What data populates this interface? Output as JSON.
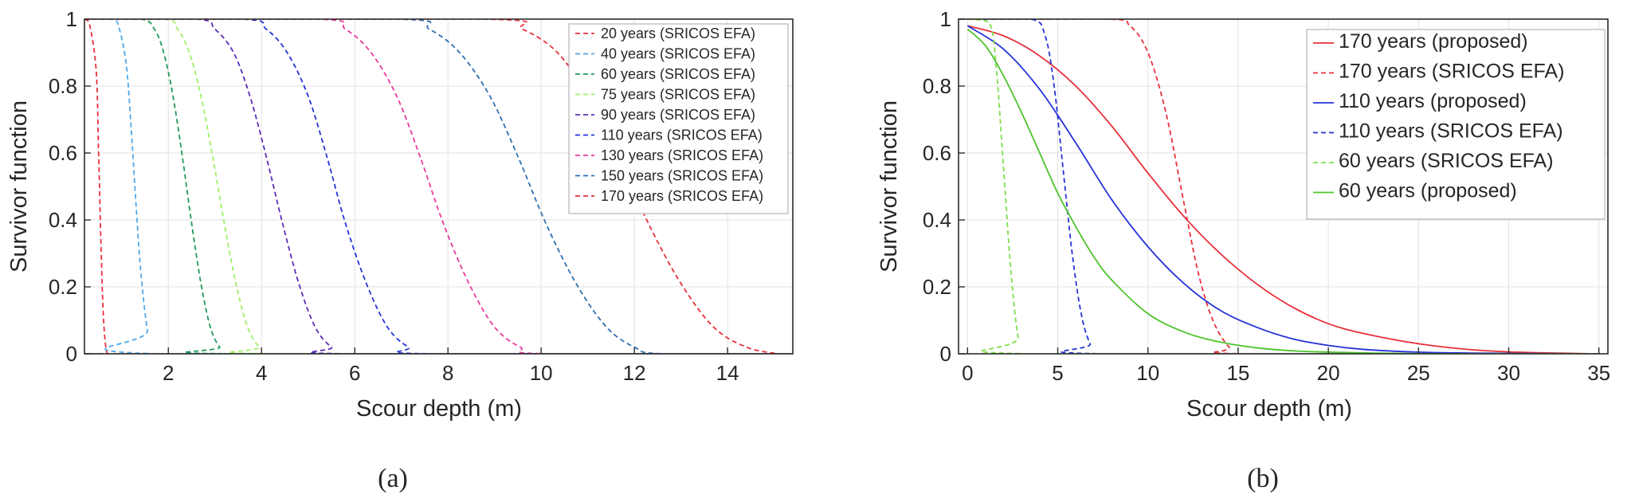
{
  "chart_data": [
    {
      "type": "line",
      "panel": "(a)",
      "xlabel": "Scour depth (m)",
      "ylabel": "Survivor function",
      "xlim": [
        0.2,
        15.4
      ],
      "ylim": [
        0,
        1
      ],
      "xticks": [
        2,
        4,
        6,
        8,
        10,
        12,
        14
      ],
      "yticks": [
        0,
        0.2,
        0.4,
        0.6,
        0.8,
        1
      ],
      "xtick_labels": [
        "2",
        "4",
        "6",
        "8",
        "10",
        "12",
        "14"
      ],
      "ytick_labels": [
        "0",
        "0.2",
        "0.4",
        "0.6",
        "0.8",
        "1"
      ],
      "grid": true,
      "legend_position": "top-right",
      "series": [
        {
          "name": "20 years (SRICOS EFA)",
          "color": "#e8303a",
          "dash": "dashed",
          "x": [
            0.2,
            0.3,
            0.45,
            0.5,
            0.55,
            0.6,
            0.65,
            0.7,
            0.8,
            15.4
          ],
          "y": [
            1,
            0.99,
            0.85,
            0.62,
            0.35,
            0.13,
            0.03,
            0.0,
            0.0,
            0.0
          ]
        },
        {
          "name": "40 years (SRICOS EFA)",
          "color": "#4fa8e8",
          "dash": "dashed",
          "x": [
            0.2,
            0.8,
            0.95,
            1.1,
            1.2,
            1.3,
            1.4,
            1.55,
            1.7,
            15.4
          ],
          "y": [
            1,
            1,
            0.97,
            0.86,
            0.68,
            0.46,
            0.26,
            0.07,
            0.0,
            0.0
          ]
        },
        {
          "name": "60 years (SRICOS EFA)",
          "color": "#1d9a5a",
          "dash": "dashed",
          "x": [
            0.2,
            1.4,
            1.7,
            1.9,
            2.1,
            2.3,
            2.5,
            2.7,
            2.9,
            3.1,
            3.3,
            15.4
          ],
          "y": [
            1,
            1,
            0.97,
            0.9,
            0.77,
            0.59,
            0.39,
            0.21,
            0.08,
            0.02,
            0.0,
            0.0
          ]
        },
        {
          "name": "75 years (SRICOS EFA)",
          "color": "#9fef6a",
          "dash": "dashed",
          "x": [
            0.2,
            1.9,
            2.2,
            2.45,
            2.7,
            2.95,
            3.2,
            3.45,
            3.7,
            3.95,
            4.2,
            15.4
          ],
          "y": [
            1,
            1,
            0.97,
            0.9,
            0.77,
            0.59,
            0.39,
            0.21,
            0.08,
            0.02,
            0.0,
            0.0
          ]
        },
        {
          "name": "90 years (SRICOS EFA)",
          "color": "#5c2bb8",
          "dash": "dashed",
          "x": [
            0.2,
            2.6,
            3.0,
            3.4,
            3.75,
            4.1,
            4.45,
            4.8,
            5.15,
            5.5,
            5.85,
            15.4
          ],
          "y": [
            1,
            1,
            0.97,
            0.9,
            0.77,
            0.59,
            0.39,
            0.21,
            0.08,
            0.02,
            0.0,
            0.0
          ]
        },
        {
          "name": "110 years (SRICOS EFA)",
          "color": "#2632d8",
          "dash": "dashed",
          "x": [
            0.2,
            3.6,
            4.1,
            4.55,
            5.0,
            5.4,
            5.8,
            6.25,
            6.7,
            7.15,
            7.6,
            15.4
          ],
          "y": [
            1,
            1,
            0.97,
            0.9,
            0.77,
            0.59,
            0.39,
            0.21,
            0.08,
            0.02,
            0.0,
            0.0
          ]
        },
        {
          "name": "130 years (SRICOS EFA)",
          "color": "#e83a9e",
          "dash": "dashed",
          "x": [
            0.2,
            5.2,
            5.8,
            6.35,
            6.9,
            7.4,
            7.9,
            8.45,
            9.0,
            9.55,
            10.1,
            15.4
          ],
          "y": [
            1,
            1,
            0.97,
            0.9,
            0.77,
            0.59,
            0.39,
            0.21,
            0.08,
            0.02,
            0.0,
            0.0
          ]
        },
        {
          "name": "150 years (SRICOS EFA)",
          "color": "#2f6fb0",
          "dash": "dashed",
          "x": [
            0.2,
            6.9,
            7.6,
            8.25,
            8.9,
            9.5,
            10.1,
            10.75,
            11.4,
            12.0,
            12.6,
            15.4
          ],
          "y": [
            1,
            1,
            0.97,
            0.9,
            0.77,
            0.59,
            0.39,
            0.21,
            0.08,
            0.02,
            0.0,
            0.0
          ]
        },
        {
          "name": "170  years (SRICOS EFA)",
          "color": "#e8303a",
          "dash": "dashed",
          "x": [
            0.2,
            8.8,
            9.6,
            10.35,
            11.0,
            11.65,
            12.3,
            13.0,
            13.7,
            14.4,
            15.1,
            15.4
          ],
          "y": [
            1,
            1,
            0.97,
            0.9,
            0.77,
            0.59,
            0.39,
            0.21,
            0.08,
            0.02,
            0.0,
            0.0
          ]
        }
      ]
    },
    {
      "type": "line",
      "panel": "(b)",
      "xlabel": "Scour depth (m)",
      "ylabel": "Survivor function",
      "xlim": [
        -0.5,
        35.5
      ],
      "ylim": [
        0,
        1
      ],
      "xticks": [
        0,
        5,
        10,
        15,
        20,
        25,
        30,
        35
      ],
      "yticks": [
        0,
        0.2,
        0.4,
        0.6,
        0.8,
        1
      ],
      "xtick_labels": [
        "0",
        "5",
        "10",
        "15",
        "20",
        "25",
        "30",
        "35"
      ],
      "ytick_labels": [
        "0",
        "0.2",
        "0.4",
        "0.6",
        "0.8",
        "1"
      ],
      "grid": true,
      "legend_position": "top-right",
      "series": [
        {
          "name": "170 years (proposed)",
          "color": "#e8303a",
          "dash": "solid",
          "x": [
            0,
            2,
            4,
            6,
            8,
            10,
            12,
            14,
            16,
            18,
            20,
            22,
            25,
            28,
            31,
            35
          ],
          "y": [
            0.98,
            0.95,
            0.89,
            0.8,
            0.68,
            0.54,
            0.41,
            0.3,
            0.21,
            0.14,
            0.09,
            0.06,
            0.03,
            0.012,
            0.004,
            0.0
          ]
        },
        {
          "name": "170  years (SRICOS EFA)",
          "color": "#e8303a",
          "dash": "dashed",
          "x": [
            0,
            7.8,
            9.0,
            10.0,
            11.0,
            12.0,
            12.8,
            13.6,
            14.5,
            15.3,
            35
          ],
          "y": [
            1,
            1,
            0.98,
            0.9,
            0.72,
            0.45,
            0.24,
            0.1,
            0.02,
            0.0,
            0.0
          ]
        },
        {
          "name": "110 years (proposed)",
          "color": "#2632d8",
          "dash": "solid",
          "x": [
            0,
            2,
            4,
            6,
            8,
            10,
            12,
            14,
            16,
            18,
            20,
            22,
            25,
            28,
            35
          ],
          "y": [
            0.98,
            0.91,
            0.79,
            0.63,
            0.46,
            0.32,
            0.21,
            0.13,
            0.08,
            0.045,
            0.025,
            0.013,
            0.005,
            0.002,
            0.0
          ]
        },
        {
          "name": "110 years (SRICOS EFA)",
          "color": "#2632d8",
          "dash": "dashed",
          "x": [
            0,
            3.5,
            4.3,
            4.8,
            5.3,
            5.8,
            6.3,
            6.8,
            7.4,
            35
          ],
          "y": [
            1,
            1,
            0.95,
            0.8,
            0.55,
            0.3,
            0.12,
            0.03,
            0.0,
            0.0
          ]
        },
        {
          "name": "60 years (SRICOS EFA)",
          "color": "#7fdc4a",
          "dash": "dashed",
          "x": [
            0,
            1.2,
            1.6,
            2.0,
            2.4,
            2.8,
            3.2,
            35
          ],
          "y": [
            1,
            0.99,
            0.85,
            0.55,
            0.25,
            0.05,
            0.0,
            0.0
          ]
        },
        {
          "name": "60 years (proposed)",
          "color": "#4cc42a",
          "dash": "solid",
          "x": [
            0,
            1,
            2,
            3,
            4,
            5,
            6,
            7,
            8,
            10,
            12,
            14,
            16,
            18,
            20,
            24,
            28,
            35
          ],
          "y": [
            0.97,
            0.92,
            0.83,
            0.72,
            0.6,
            0.48,
            0.38,
            0.29,
            0.22,
            0.12,
            0.065,
            0.035,
            0.018,
            0.009,
            0.005,
            0.001,
            0.0,
            0.0
          ]
        }
      ]
    }
  ]
}
